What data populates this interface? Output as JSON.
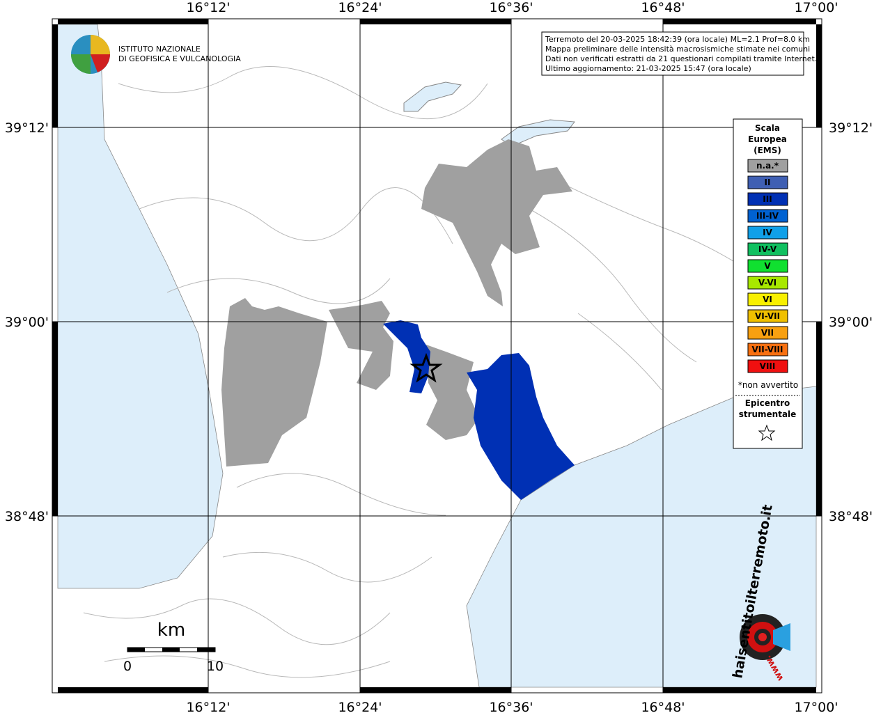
{
  "info": [
    "Terremoto del 20-03-2025 18:42:39 (ora locale) ML=2.1 Prof=8.0 km",
    "Mappa preliminare delle intensità macrosismiche stimate nei comuni",
    "Dati non verificati estratti da 21 questionari compilati tramite Internet.",
    "Ultimo aggiornamento: 21-03-2025 15:47 (ora locale)"
  ],
  "logo": {
    "line1": "ISTITUTO NAZIONALE",
    "line2": "DI GEOFISICA E VULCANOLOGIA"
  },
  "lon_labels": [
    "16°12'",
    "16°24'",
    "16°36'",
    "16°48'",
    "17°00'"
  ],
  "lat_labels": [
    "39°12'",
    "39°00'",
    "38°48'"
  ],
  "legend": {
    "title": [
      "Scala",
      "Europea",
      "(EMS)"
    ],
    "items": [
      {
        "label": "n.a.*",
        "color": "#a0a0a0"
      },
      {
        "label": "II",
        "color": "#3f5fb3"
      },
      {
        "label": "III",
        "color": "#0030b4"
      },
      {
        "label": "III-IV",
        "color": "#0062d2"
      },
      {
        "label": "IV",
        "color": "#10a0e8"
      },
      {
        "label": "IV-V",
        "color": "#10c060"
      },
      {
        "label": "V",
        "color": "#10e030"
      },
      {
        "label": "V-VI",
        "color": "#a8e800"
      },
      {
        "label": "VI",
        "color": "#f8f000"
      },
      {
        "label": "VI-VII",
        "color": "#f0c000"
      },
      {
        "label": "VII",
        "color": "#f8a010"
      },
      {
        "label": "VII-VIII",
        "color": "#f87010"
      },
      {
        "label": "VIII",
        "color": "#f01010"
      }
    ],
    "note": "*non avvertito",
    "epicenter": [
      "Epicentro",
      "strumentale"
    ]
  },
  "scale_bar": {
    "unit": "km",
    "labels": [
      "0",
      "10"
    ]
  },
  "site_logo": {
    "name": "haisentitoilterremoto.it",
    "prefix": "www."
  }
}
